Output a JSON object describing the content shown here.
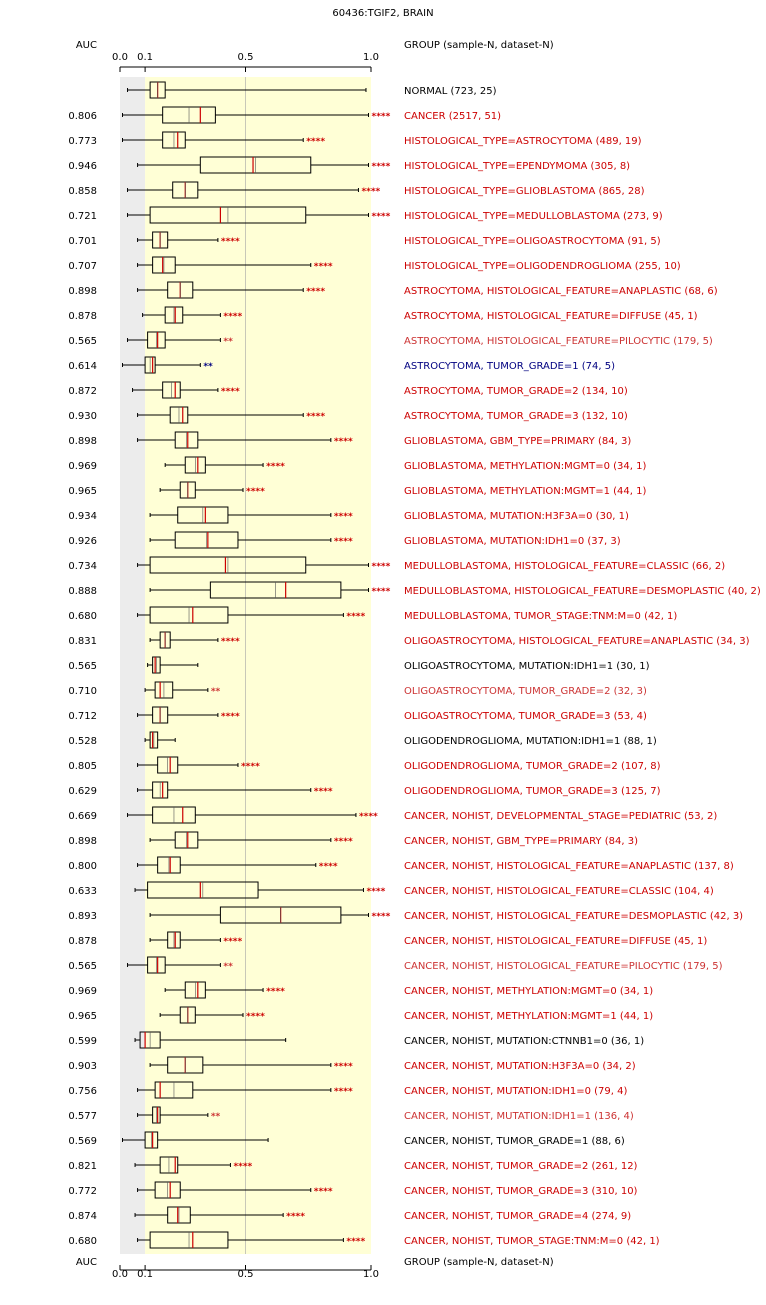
{
  "title": "60436:TGIF2, BRAIN",
  "auc_header": "AUC",
  "group_header": "GROUP (sample-N, dataset-N)",
  "colors": {
    "significant_up": "#cc0000",
    "significant_down": "#000080",
    "weak": "#cc3333",
    "neutral": "#000000",
    "median": "#cc0000",
    "highlight_band": "#ffffd6",
    "left_band": "#ececec"
  },
  "chart_data": {
    "type": "boxplot",
    "title": "60436:TGIF2, BRAIN",
    "xlim": [
      0,
      1
    ],
    "xticks": [
      {
        "value": 0.0,
        "label": "0.0"
      },
      {
        "value": 0.1,
        "label": "0.1"
      },
      {
        "value": 0.5,
        "label": "0.5"
      },
      {
        "value": 1.0,
        "label": "1.0"
      }
    ],
    "shaded_range": [
      0.1,
      1.0
    ],
    "grid_line": 0.5,
    "rows": [
      {
        "label": "NORMAL (723, 25)",
        "auc": "",
        "sig": "",
        "color": "neutral",
        "min": 0.03,
        "q1": 0.12,
        "med": 0.15,
        "q3": 0.18,
        "max": 0.98
      },
      {
        "label": "CANCER (2517, 51)",
        "auc": "0.806",
        "sig": "****",
        "color": "significant_up",
        "min": 0.01,
        "q1": 0.17,
        "med": 0.32,
        "q3": 0.38,
        "max": 0.99
      },
      {
        "label": "HISTOLOGICAL_TYPE=ASTROCYTOMA (489, 19)",
        "auc": "0.773",
        "sig": "****",
        "color": "significant_up",
        "min": 0.01,
        "q1": 0.17,
        "med": 0.23,
        "q3": 0.26,
        "max": 0.73
      },
      {
        "label": "HISTOLOGICAL_TYPE=EPENDYMOMA (305, 8)",
        "auc": "0.946",
        "sig": "****",
        "color": "significant_up",
        "min": 0.07,
        "q1": 0.32,
        "med": 0.53,
        "q3": 0.76,
        "max": 0.99
      },
      {
        "label": "HISTOLOGICAL_TYPE=GLIOBLASTOMA (865, 28)",
        "auc": "0.858",
        "sig": "****",
        "color": "significant_up",
        "min": 0.03,
        "q1": 0.21,
        "med": 0.26,
        "q3": 0.31,
        "max": 0.95
      },
      {
        "label": "HISTOLOGICAL_TYPE=MEDULLOBLASTOMA (273, 9)",
        "auc": "0.721",
        "sig": "****",
        "color": "significant_up",
        "min": 0.03,
        "q1": 0.12,
        "med": 0.4,
        "q3": 0.74,
        "max": 0.99
      },
      {
        "label": "HISTOLOGICAL_TYPE=OLIGOASTROCYTOMA (91, 5)",
        "auc": "0.701",
        "sig": "****",
        "color": "significant_up",
        "min": 0.07,
        "q1": 0.13,
        "med": 0.16,
        "q3": 0.19,
        "max": 0.39
      },
      {
        "label": "HISTOLOGICAL_TYPE=OLIGODENDROGLIOMA (255, 10)",
        "auc": "0.707",
        "sig": "****",
        "color": "significant_up",
        "min": 0.07,
        "q1": 0.13,
        "med": 0.17,
        "q3": 0.22,
        "max": 0.76
      },
      {
        "label": "ASTROCYTOMA, HISTOLOGICAL_FEATURE=ANAPLASTIC (68, 6)",
        "auc": "0.898",
        "sig": "****",
        "color": "significant_up",
        "min": 0.07,
        "q1": 0.19,
        "med": 0.24,
        "q3": 0.29,
        "max": 0.73
      },
      {
        "label": "ASTROCYTOMA, HISTOLOGICAL_FEATURE=DIFFUSE (45, 1)",
        "auc": "0.878",
        "sig": "****",
        "color": "significant_up",
        "min": 0.09,
        "q1": 0.18,
        "med": 0.22,
        "q3": 0.25,
        "max": 0.4
      },
      {
        "label": "ASTROCYTOMA, HISTOLOGICAL_FEATURE=PILOCYTIC (179, 5)",
        "auc": "0.565",
        "sig": "**",
        "color": "weak",
        "min": 0.03,
        "q1": 0.11,
        "med": 0.15,
        "q3": 0.18,
        "max": 0.4
      },
      {
        "label": "ASTROCYTOMA, TUMOR_GRADE=1 (74, 5)",
        "auc": "0.614",
        "sig": "**",
        "color": "significant_down",
        "min": 0.01,
        "q1": 0.1,
        "med": 0.13,
        "q3": 0.14,
        "max": 0.32
      },
      {
        "label": "ASTROCYTOMA, TUMOR_GRADE=2 (134, 10)",
        "auc": "0.872",
        "sig": "****",
        "color": "significant_up",
        "min": 0.05,
        "q1": 0.17,
        "med": 0.22,
        "q3": 0.24,
        "max": 0.39
      },
      {
        "label": "ASTROCYTOMA, TUMOR_GRADE=3 (132, 10)",
        "auc": "0.930",
        "sig": "****",
        "color": "significant_up",
        "min": 0.07,
        "q1": 0.2,
        "med": 0.25,
        "q3": 0.27,
        "max": 0.73
      },
      {
        "label": "GLIOBLASTOMA, GBM_TYPE=PRIMARY (84, 3)",
        "auc": "0.898",
        "sig": "****",
        "color": "significant_up",
        "min": 0.07,
        "q1": 0.22,
        "med": 0.27,
        "q3": 0.31,
        "max": 0.84
      },
      {
        "label": "GLIOBLASTOMA, METHYLATION:MGMT=0 (34, 1)",
        "auc": "0.969",
        "sig": "****",
        "color": "significant_up",
        "min": 0.18,
        "q1": 0.26,
        "med": 0.31,
        "q3": 0.34,
        "max": 0.57
      },
      {
        "label": "GLIOBLASTOMA, METHYLATION:MGMT=1 (44, 1)",
        "auc": "0.965",
        "sig": "****",
        "color": "significant_up",
        "min": 0.16,
        "q1": 0.24,
        "med": 0.27,
        "q3": 0.3,
        "max": 0.49
      },
      {
        "label": "GLIOBLASTOMA, MUTATION:H3F3A=0 (30, 1)",
        "auc": "0.934",
        "sig": "****",
        "color": "significant_up",
        "min": 0.12,
        "q1": 0.23,
        "med": 0.34,
        "q3": 0.43,
        "max": 0.84
      },
      {
        "label": "GLIOBLASTOMA, MUTATION:IDH1=0 (37, 3)",
        "auc": "0.926",
        "sig": "****",
        "color": "significant_up",
        "min": 0.12,
        "q1": 0.22,
        "med": 0.35,
        "q3": 0.47,
        "max": 0.84
      },
      {
        "label": "MEDULLOBLASTOMA, HISTOLOGICAL_FEATURE=CLASSIC (66, 2)",
        "auc": "0.734",
        "sig": "****",
        "color": "significant_up",
        "min": 0.07,
        "q1": 0.12,
        "med": 0.42,
        "q3": 0.74,
        "max": 0.99
      },
      {
        "label": "MEDULLOBLASTOMA, HISTOLOGICAL_FEATURE=DESMOPLASTIC (40, 2)",
        "auc": "0.888",
        "sig": "****",
        "color": "significant_up",
        "min": 0.12,
        "q1": 0.36,
        "med": 0.66,
        "q3": 0.88,
        "max": 0.99
      },
      {
        "label": "MEDULLOBLASTOMA, TUMOR_STAGE:TNM:M=0 (42, 1)",
        "auc": "0.680",
        "sig": "****",
        "color": "significant_up",
        "min": 0.07,
        "q1": 0.12,
        "med": 0.29,
        "q3": 0.43,
        "max": 0.89
      },
      {
        "label": "OLIGOASTROCYTOMA, HISTOLOGICAL_FEATURE=ANAPLASTIC (34, 3)",
        "auc": "0.831",
        "sig": "****",
        "color": "significant_up",
        "min": 0.12,
        "q1": 0.16,
        "med": 0.18,
        "q3": 0.2,
        "max": 0.39
      },
      {
        "label": "OLIGOASTROCYTOMA, MUTATION:IDH1=1 (30, 1)",
        "auc": "0.565",
        "sig": "",
        "color": "neutral",
        "min": 0.11,
        "q1": 0.13,
        "med": 0.14,
        "q3": 0.16,
        "max": 0.31
      },
      {
        "label": "OLIGOASTROCYTOMA, TUMOR_GRADE=2 (32, 3)",
        "auc": "0.710",
        "sig": "**",
        "color": "weak",
        "min": 0.1,
        "q1": 0.14,
        "med": 0.16,
        "q3": 0.21,
        "max": 0.35
      },
      {
        "label": "OLIGOASTROCYTOMA, TUMOR_GRADE=3 (53, 4)",
        "auc": "0.712",
        "sig": "****",
        "color": "significant_up",
        "min": 0.07,
        "q1": 0.13,
        "med": 0.16,
        "q3": 0.19,
        "max": 0.39
      },
      {
        "label": "OLIGODENDROGLIOMA, MUTATION:IDH1=1 (88, 1)",
        "auc": "0.528",
        "sig": "",
        "color": "neutral",
        "min": 0.1,
        "q1": 0.12,
        "med": 0.13,
        "q3": 0.15,
        "max": 0.22
      },
      {
        "label": "OLIGODENDROGLIOMA, TUMOR_GRADE=2 (107, 8)",
        "auc": "0.805",
        "sig": "****",
        "color": "significant_up",
        "min": 0.07,
        "q1": 0.15,
        "med": 0.2,
        "q3": 0.23,
        "max": 0.47
      },
      {
        "label": "OLIGODENDROGLIOMA, TUMOR_GRADE=3 (125, 7)",
        "auc": "0.629",
        "sig": "****",
        "color": "significant_up",
        "min": 0.07,
        "q1": 0.13,
        "med": 0.17,
        "q3": 0.19,
        "max": 0.76
      },
      {
        "label": "CANCER, NOHIST, DEVELOPMENTAL_STAGE=PEDIATRIC (53, 2)",
        "auc": "0.669",
        "sig": "****",
        "color": "significant_up",
        "min": 0.03,
        "q1": 0.13,
        "med": 0.25,
        "q3": 0.3,
        "max": 0.94
      },
      {
        "label": "CANCER, NOHIST, GBM_TYPE=PRIMARY (84, 3)",
        "auc": "0.898",
        "sig": "****",
        "color": "significant_up",
        "min": 0.12,
        "q1": 0.22,
        "med": 0.27,
        "q3": 0.31,
        "max": 0.84
      },
      {
        "label": "CANCER, NOHIST, HISTOLOGICAL_FEATURE=ANAPLASTIC (137, 8)",
        "auc": "0.800",
        "sig": "****",
        "color": "significant_up",
        "min": 0.07,
        "q1": 0.15,
        "med": 0.2,
        "q3": 0.24,
        "max": 0.78
      },
      {
        "label": "CANCER, NOHIST, HISTOLOGICAL_FEATURE=CLASSIC (104, 4)",
        "auc": "0.633",
        "sig": "****",
        "color": "significant_up",
        "min": 0.06,
        "q1": 0.11,
        "med": 0.32,
        "q3": 0.55,
        "max": 0.97
      },
      {
        "label": "CANCER, NOHIST, HISTOLOGICAL_FEATURE=DESMOPLASTIC (42, 3)",
        "auc": "0.893",
        "sig": "****",
        "color": "significant_up",
        "min": 0.12,
        "q1": 0.4,
        "med": 0.64,
        "q3": 0.88,
        "max": 0.99
      },
      {
        "label": "CANCER, NOHIST, HISTOLOGICAL_FEATURE=DIFFUSE (45, 1)",
        "auc": "0.878",
        "sig": "****",
        "color": "significant_up",
        "min": 0.12,
        "q1": 0.19,
        "med": 0.22,
        "q3": 0.24,
        "max": 0.4
      },
      {
        "label": "CANCER, NOHIST, HISTOLOGICAL_FEATURE=PILOCYTIC (179, 5)",
        "auc": "0.565",
        "sig": "**",
        "color": "weak",
        "min": 0.03,
        "q1": 0.11,
        "med": 0.15,
        "q3": 0.18,
        "max": 0.4
      },
      {
        "label": "CANCER, NOHIST, METHYLATION:MGMT=0 (34, 1)",
        "auc": "0.969",
        "sig": "****",
        "color": "significant_up",
        "min": 0.18,
        "q1": 0.26,
        "med": 0.31,
        "q3": 0.34,
        "max": 0.57
      },
      {
        "label": "CANCER, NOHIST, METHYLATION:MGMT=1 (44, 1)",
        "auc": "0.965",
        "sig": "****",
        "color": "significant_up",
        "min": 0.16,
        "q1": 0.24,
        "med": 0.27,
        "q3": 0.3,
        "max": 0.49
      },
      {
        "label": "CANCER, NOHIST, MUTATION:CTNNB1=0 (36, 1)",
        "auc": "0.599",
        "sig": "",
        "color": "neutral",
        "min": 0.06,
        "q1": 0.08,
        "med": 0.1,
        "q3": 0.16,
        "max": 0.66
      },
      {
        "label": "CANCER, NOHIST, MUTATION:H3F3A=0 (34, 2)",
        "auc": "0.903",
        "sig": "****",
        "color": "significant_up",
        "min": 0.12,
        "q1": 0.19,
        "med": 0.26,
        "q3": 0.33,
        "max": 0.84
      },
      {
        "label": "CANCER, NOHIST, MUTATION:IDH1=0 (79, 4)",
        "auc": "0.756",
        "sig": "****",
        "color": "significant_up",
        "min": 0.07,
        "q1": 0.14,
        "med": 0.16,
        "q3": 0.29,
        "max": 0.84
      },
      {
        "label": "CANCER, NOHIST, MUTATION:IDH1=1 (136, 4)",
        "auc": "0.577",
        "sig": "**",
        "color": "weak",
        "min": 0.07,
        "q1": 0.13,
        "med": 0.15,
        "q3": 0.16,
        "max": 0.35
      },
      {
        "label": "CANCER, NOHIST, TUMOR_GRADE=1 (88, 6)",
        "auc": "0.569",
        "sig": "",
        "color": "neutral",
        "min": 0.01,
        "q1": 0.1,
        "med": 0.13,
        "q3": 0.15,
        "max": 0.59
      },
      {
        "label": "CANCER, NOHIST, TUMOR_GRADE=2 (261, 12)",
        "auc": "0.821",
        "sig": "****",
        "color": "significant_up",
        "min": 0.06,
        "q1": 0.16,
        "med": 0.22,
        "q3": 0.23,
        "max": 0.44
      },
      {
        "label": "CANCER, NOHIST, TUMOR_GRADE=3 (310, 10)",
        "auc": "0.772",
        "sig": "****",
        "color": "significant_up",
        "min": 0.07,
        "q1": 0.14,
        "med": 0.2,
        "q3": 0.24,
        "max": 0.76
      },
      {
        "label": "CANCER, NOHIST, TUMOR_GRADE=4 (274, 9)",
        "auc": "0.874",
        "sig": "****",
        "color": "significant_up",
        "min": 0.06,
        "q1": 0.19,
        "med": 0.23,
        "q3": 0.28,
        "max": 0.65
      },
      {
        "label": "CANCER, NOHIST, TUMOR_STAGE:TNM:M=0 (42, 1)",
        "auc": "0.680",
        "sig": "****",
        "color": "significant_up",
        "min": 0.07,
        "q1": 0.12,
        "med": 0.29,
        "q3": 0.43,
        "max": 0.89
      }
    ]
  }
}
